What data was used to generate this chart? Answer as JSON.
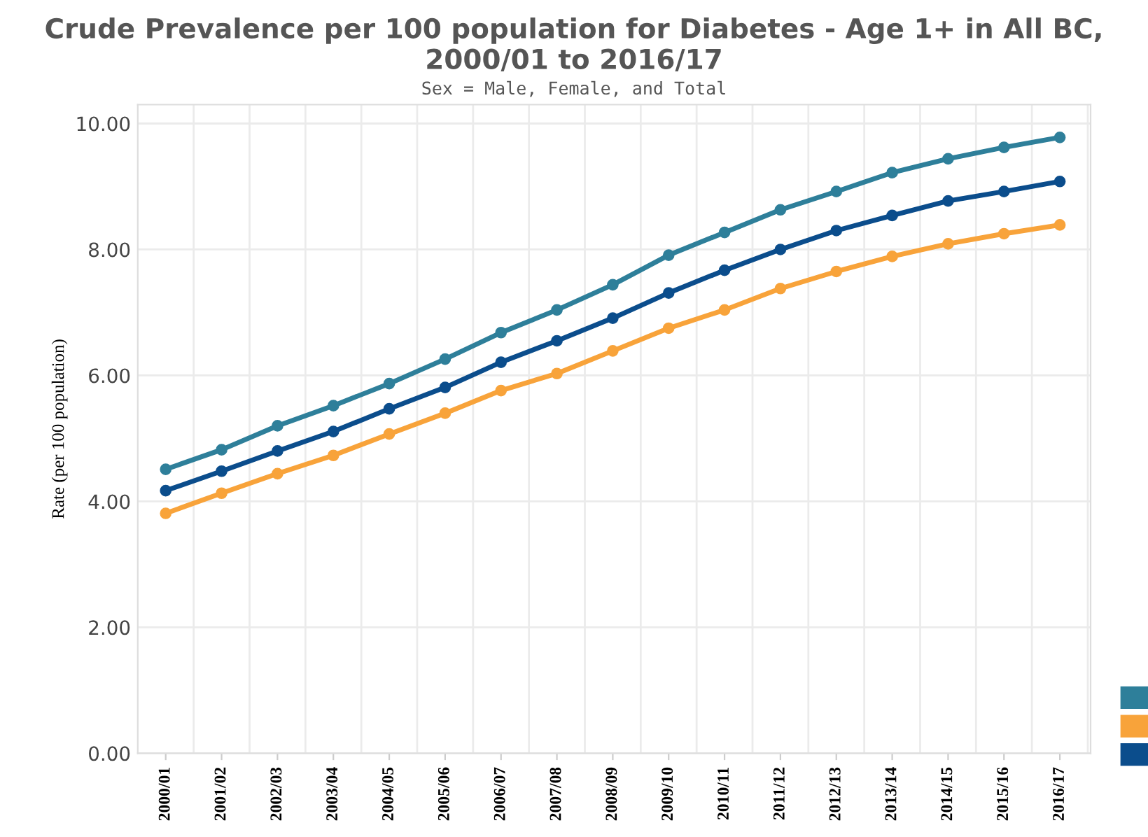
{
  "chart_data": {
    "type": "line",
    "title": "Crude Prevalence per 100 population for Diabetes - Age 1+ in All BC, 2000/01 to 2016/17",
    "subtitle": "Sex = Male, Female, and Total",
    "ylabel": "Rate (per 100 population)",
    "categories": [
      "2000/01",
      "2001/02",
      "2002/03",
      "2003/04",
      "2004/05",
      "2005/06",
      "2006/07",
      "2007/08",
      "2008/09",
      "2009/10",
      "2010/11",
      "2011/12",
      "2012/13",
      "2013/14",
      "2014/15",
      "2015/16",
      "2016/17"
    ],
    "series": [
      {
        "color": "#2e7f9a",
        "values": [
          4.51,
          4.82,
          5.2,
          5.52,
          5.87,
          6.26,
          6.68,
          7.04,
          7.44,
          7.91,
          8.27,
          8.63,
          8.92,
          9.22,
          9.44,
          9.62,
          9.78
        ]
      },
      {
        "color": "#f8a33a",
        "values": [
          3.81,
          4.13,
          4.44,
          4.73,
          5.07,
          5.4,
          5.76,
          6.03,
          6.39,
          6.75,
          7.04,
          7.38,
          7.65,
          7.89,
          8.09,
          8.25,
          8.39
        ]
      },
      {
        "color": "#0b4d8c",
        "values": [
          4.17,
          4.48,
          4.8,
          5.11,
          5.47,
          5.81,
          6.21,
          6.55,
          6.91,
          7.31,
          7.67,
          8.0,
          8.3,
          8.54,
          8.77,
          8.92,
          9.08
        ]
      }
    ],
    "ylim": [
      0,
      10.3
    ],
    "yticks": [
      {
        "value": 0,
        "label": "0.00"
      },
      {
        "value": 2,
        "label": "2.00"
      },
      {
        "value": 4,
        "label": "4.00"
      },
      {
        "value": 6,
        "label": "6.00"
      },
      {
        "value": 8,
        "label": "8.00"
      },
      {
        "value": 10,
        "label": "10.00"
      }
    ],
    "grid": true,
    "marker": "circle",
    "line_style": "solid"
  }
}
